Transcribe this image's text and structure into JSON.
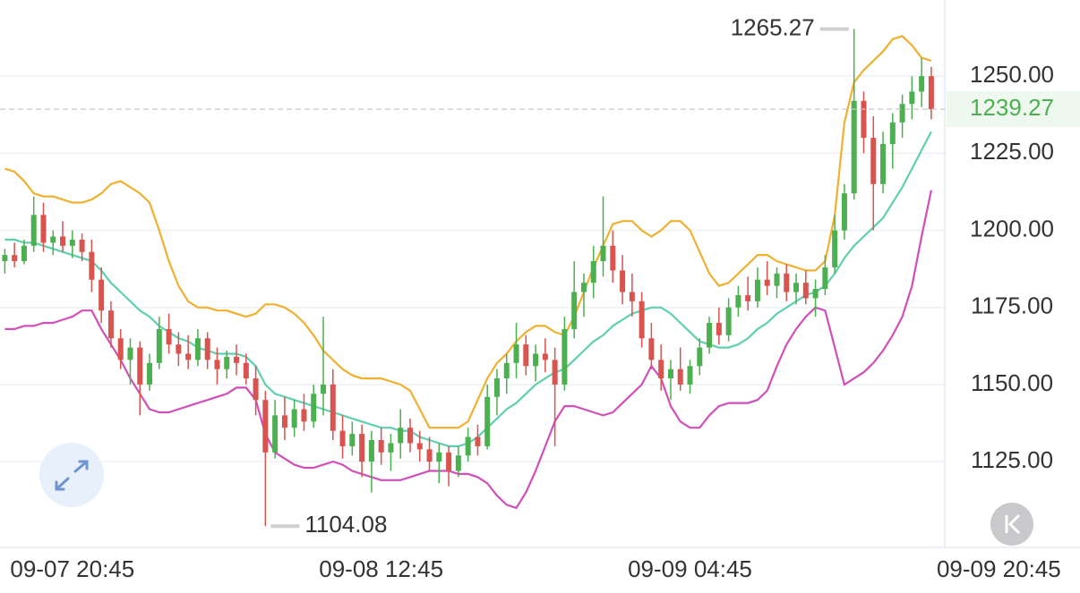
{
  "chart_data": {
    "type": "candlestick",
    "up_color": "#4caf50",
    "down_color": "#d9534f",
    "xlim": [
      -0.5,
      97.4
    ],
    "ylim": [
      1097.2,
      1274.7
    ],
    "grid": true,
    "xticks": [
      {
        "value": 7,
        "label": "09-07 20:45"
      },
      {
        "value": 39,
        "label": "09-08 12:45"
      },
      {
        "value": 71,
        "label": "09-09 04:45"
      },
      {
        "value": 103,
        "label": "09-09 20:45"
      }
    ],
    "yticks": [
      {
        "value": 1125,
        "label": "1125.00"
      },
      {
        "value": 1150,
        "label": "1150.00"
      },
      {
        "value": 1175,
        "label": "1175.00"
      },
      {
        "value": 1200,
        "label": "1200.00"
      },
      {
        "value": 1225,
        "label": "1225.00"
      },
      {
        "value": 1250,
        "label": "1250.00"
      }
    ],
    "high_label": "1265.27",
    "low_label": "1104.08",
    "last_price": 1239.27,
    "last_price_color": "#4caf50",
    "ohlc": [
      [
        1190,
        1194,
        1186,
        1192
      ],
      [
        1192,
        1196,
        1188,
        1190
      ],
      [
        1190,
        1197,
        1189,
        1195
      ],
      [
        1195,
        1211,
        1193,
        1205
      ],
      [
        1205,
        1209,
        1193,
        1196
      ],
      [
        1196,
        1200,
        1192,
        1198
      ],
      [
        1198,
        1203,
        1193,
        1195
      ],
      [
        1195,
        1200,
        1191,
        1197
      ],
      [
        1197,
        1199,
        1190,
        1193
      ],
      [
        1193,
        1197,
        1180,
        1184
      ],
      [
        1184,
        1188,
        1170,
        1174
      ],
      [
        1174,
        1177,
        1162,
        1165
      ],
      [
        1165,
        1168,
        1155,
        1158
      ],
      [
        1158,
        1165,
        1150,
        1162
      ],
      [
        1162,
        1164,
        1140,
        1150
      ],
      [
        1150,
        1160,
        1148,
        1157
      ],
      [
        1157,
        1172,
        1155,
        1168
      ],
      [
        1168,
        1173,
        1160,
        1163
      ],
      [
        1163,
        1167,
        1156,
        1160
      ],
      [
        1160,
        1166,
        1155,
        1158
      ],
      [
        1158,
        1168,
        1156,
        1165
      ],
      [
        1165,
        1167,
        1155,
        1158
      ],
      [
        1158,
        1162,
        1150,
        1155
      ],
      [
        1155,
        1161,
        1152,
        1159
      ],
      [
        1159,
        1163,
        1153,
        1157
      ],
      [
        1157,
        1160,
        1150,
        1152
      ],
      [
        1152,
        1156,
        1140,
        1145
      ],
      [
        1145,
        1148,
        1104.08,
        1128
      ],
      [
        1128,
        1145,
        1126,
        1140
      ],
      [
        1140,
        1146,
        1132,
        1136
      ],
      [
        1136,
        1145,
        1133,
        1142
      ],
      [
        1142,
        1147,
        1135,
        1138
      ],
      [
        1138,
        1150,
        1136,
        1147
      ],
      [
        1147,
        1172,
        1140,
        1150
      ],
      [
        1150,
        1155,
        1132,
        1135
      ],
      [
        1135,
        1140,
        1126,
        1130
      ],
      [
        1130,
        1138,
        1127,
        1134
      ],
      [
        1134,
        1137,
        1120,
        1125
      ],
      [
        1125,
        1135,
        1115,
        1132
      ],
      [
        1132,
        1136,
        1124,
        1128
      ],
      [
        1128,
        1134,
        1122,
        1131
      ],
      [
        1131,
        1142,
        1126,
        1136
      ],
      [
        1136,
        1139,
        1128,
        1131
      ],
      [
        1131,
        1135,
        1125,
        1129
      ],
      [
        1129,
        1133,
        1122,
        1125
      ],
      [
        1125,
        1131,
        1118,
        1128
      ],
      [
        1128,
        1130,
        1117,
        1122
      ],
      [
        1122,
        1130,
        1120,
        1127
      ],
      [
        1127,
        1136,
        1125,
        1133
      ],
      [
        1133,
        1137,
        1127,
        1130
      ],
      [
        1130,
        1150,
        1129,
        1146
      ],
      [
        1146,
        1155,
        1140,
        1152
      ],
      [
        1152,
        1160,
        1147,
        1157
      ],
      [
        1157,
        1170,
        1152,
        1163
      ],
      [
        1163,
        1166,
        1153,
        1156
      ],
      [
        1156,
        1163,
        1151,
        1160
      ],
      [
        1160,
        1165,
        1154,
        1158
      ],
      [
        1158,
        1162,
        1130,
        1150
      ],
      [
        1150,
        1172,
        1148,
        1168
      ],
      [
        1168,
        1190,
        1165,
        1180
      ],
      [
        1180,
        1186,
        1172,
        1183
      ],
      [
        1183,
        1195,
        1178,
        1190
      ],
      [
        1190,
        1211,
        1185,
        1195
      ],
      [
        1195,
        1200,
        1183,
        1187
      ],
      [
        1187,
        1192,
        1176,
        1180
      ],
      [
        1180,
        1186,
        1172,
        1177
      ],
      [
        1177,
        1180,
        1162,
        1165
      ],
      [
        1165,
        1170,
        1155,
        1158
      ],
      [
        1158,
        1163,
        1148,
        1152
      ],
      [
        1152,
        1158,
        1145,
        1155
      ],
      [
        1155,
        1162,
        1148,
        1150
      ],
      [
        1150,
        1158,
        1147,
        1156
      ],
      [
        1156,
        1165,
        1153,
        1162
      ],
      [
        1162,
        1172,
        1160,
        1170
      ],
      [
        1170,
        1175,
        1163,
        1166
      ],
      [
        1166,
        1178,
        1164,
        1175
      ],
      [
        1175,
        1182,
        1172,
        1179
      ],
      [
        1179,
        1185,
        1174,
        1177
      ],
      [
        1177,
        1188,
        1175,
        1184
      ],
      [
        1184,
        1190,
        1179,
        1182
      ],
      [
        1182,
        1188,
        1178,
        1186
      ],
      [
        1186,
        1189,
        1177,
        1180
      ],
      [
        1180,
        1186,
        1176,
        1183
      ],
      [
        1183,
        1187,
        1176,
        1178
      ],
      [
        1178,
        1184,
        1172,
        1181
      ],
      [
        1181,
        1192,
        1179,
        1188
      ],
      [
        1188,
        1205,
        1186,
        1200
      ],
      [
        1200,
        1215,
        1197,
        1212
      ],
      [
        1212,
        1265.27,
        1210,
        1242
      ],
      [
        1242,
        1245,
        1225,
        1230
      ],
      [
        1230,
        1237,
        1200,
        1215
      ],
      [
        1215,
        1232,
        1212,
        1228
      ],
      [
        1228,
        1238,
        1220,
        1235
      ],
      [
        1235,
        1244,
        1230,
        1241
      ],
      [
        1241,
        1250,
        1236,
        1245
      ],
      [
        1245,
        1256,
        1240,
        1250
      ],
      [
        1250,
        1253,
        1236,
        1239.27
      ]
    ],
    "bands": [
      {
        "color": "#f0b030",
        "values": [
          1220,
          1219,
          1216,
          1212,
          1211,
          1211,
          1210,
          1209,
          1209,
          1210,
          1212,
          1215,
          1216,
          1214,
          1212,
          1209,
          1200,
          1190,
          1182,
          1177,
          1175,
          1175,
          1174,
          1174,
          1173,
          1172,
          1173,
          1176,
          1176,
          1175,
          1173,
          1170,
          1166,
          1161,
          1158,
          1155,
          1153,
          1152,
          1152,
          1152,
          1151,
          1150,
          1148,
          1142,
          1136,
          1136,
          1136,
          1136,
          1138,
          1145,
          1152,
          1157,
          1160,
          1164,
          1167,
          1169,
          1169,
          1167,
          1166,
          1172,
          1180,
          1188,
          1195,
          1202,
          1203,
          1203,
          1200,
          1198,
          1200,
          1203,
          1203,
          1200,
          1193,
          1186,
          1182,
          1183,
          1186,
          1189,
          1192,
          1192,
          1190,
          1189,
          1188,
          1187,
          1187,
          1190,
          1205,
          1235,
          1248,
          1252,
          1255,
          1258,
          1262,
          1263,
          1260,
          1256,
          1255
        ]
      },
      {
        "color": "#5fcfb0",
        "values": [
          1197,
          1197,
          1196,
          1196,
          1195,
          1194,
          1193,
          1192,
          1191,
          1190,
          1187,
          1183,
          1180,
          1177,
          1174,
          1172,
          1169,
          1167,
          1165,
          1164,
          1162,
          1161,
          1160,
          1160,
          1160,
          1159,
          1156,
          1150,
          1147,
          1146,
          1145,
          1144,
          1143,
          1142,
          1141,
          1140,
          1139,
          1138,
          1137,
          1136,
          1136,
          1135,
          1135,
          1133,
          1132,
          1131,
          1130,
          1130,
          1131,
          1133,
          1136,
          1139,
          1142,
          1144,
          1147,
          1150,
          1152,
          1154,
          1155,
          1158,
          1161,
          1164,
          1166,
          1169,
          1171,
          1173,
          1174,
          1175,
          1175,
          1173,
          1170,
          1167,
          1164,
          1163,
          1162,
          1162,
          1163,
          1165,
          1168,
          1170,
          1173,
          1175,
          1177,
          1179,
          1180,
          1182,
          1186,
          1191,
          1195,
          1198,
          1201,
          1204,
          1209,
          1214,
          1220,
          1226,
          1232
        ]
      },
      {
        "color": "#d14fb9",
        "values": [
          1168,
          1168,
          1169,
          1169,
          1170,
          1170,
          1171,
          1172,
          1174,
          1174,
          1168,
          1163,
          1158,
          1152,
          1147,
          1142,
          1141,
          1141,
          1142,
          1143,
          1144,
          1145,
          1146,
          1147,
          1149,
          1149,
          1145,
          1134,
          1128,
          1126,
          1124,
          1123,
          1123,
          1124,
          1125,
          1124,
          1122,
          1121,
          1120,
          1119,
          1119,
          1119,
          1120,
          1121,
          1122,
          1122,
          1122,
          1121,
          1121,
          1120,
          1118,
          1114,
          1111,
          1110,
          1115,
          1122,
          1130,
          1138,
          1143,
          1143,
          1142,
          1141,
          1140,
          1141,
          1144,
          1147,
          1150,
          1156,
          1152,
          1143,
          1138,
          1136,
          1136,
          1140,
          1143,
          1144,
          1144,
          1144,
          1145,
          1148,
          1156,
          1163,
          1168,
          1172,
          1175,
          1174,
          1162,
          1150,
          1152,
          1154,
          1157,
          1161,
          1166,
          1172,
          1182,
          1198,
          1213
        ]
      }
    ]
  }
}
